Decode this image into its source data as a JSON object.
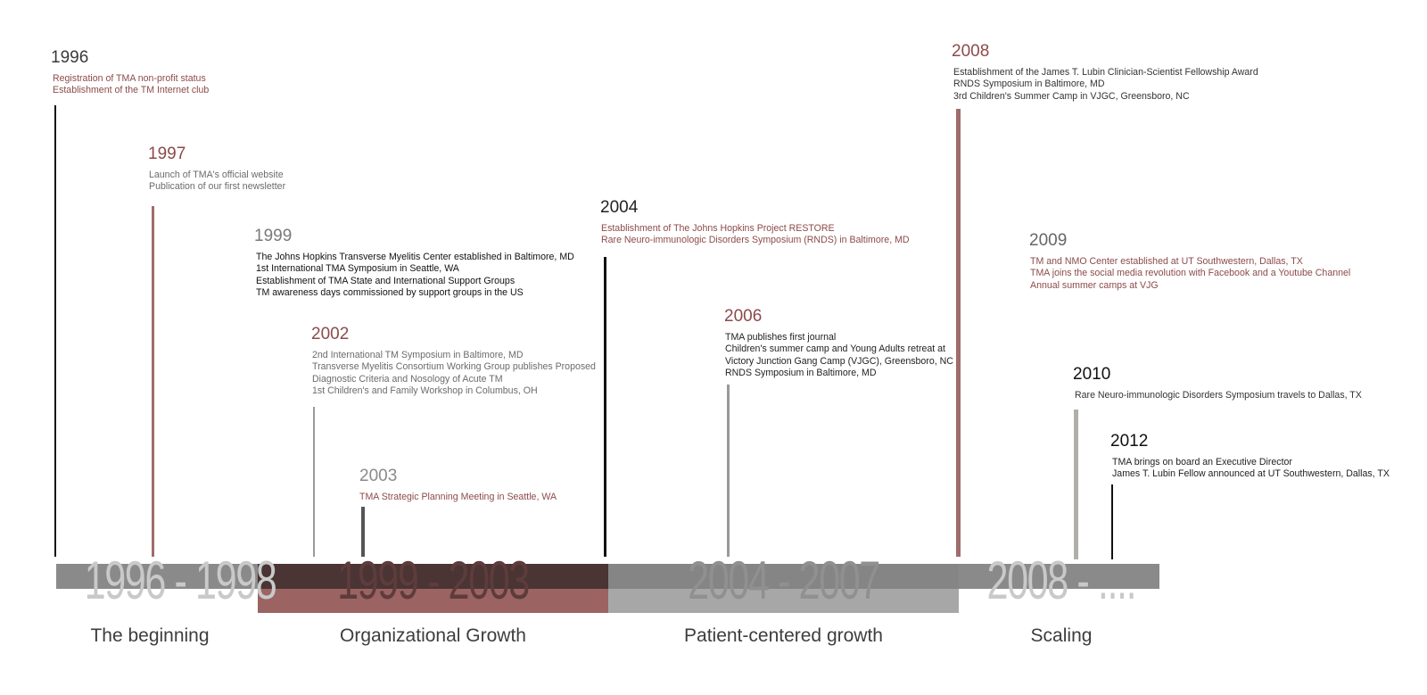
{
  "events": [
    {
      "year": "1996",
      "items": [
        "Registration of TMA non-profit status",
        "Establishment of the TM Internet club"
      ]
    },
    {
      "year": "1997",
      "items": [
        "Launch of TMA's official website",
        "Publication of our first newsletter"
      ]
    },
    {
      "year": "1999",
      "items": [
        "The Johns Hopkins Transverse Myelitis Center established in Baltimore, MD",
        "1st International TMA Symposium in Seattle, WA",
        "Establishment of TMA State and International Support Groups",
        "TM awareness days commissioned by support groups in the US"
      ]
    },
    {
      "year": "2002",
      "items": [
        "2nd International TM Symposium in Baltimore, MD",
        "Transverse Myelitis Consortium Working Group publishes Proposed",
        "Diagnostic Criteria and Nosology of Acute TM",
        "1st Children's and Family Workshop in Columbus, OH"
      ]
    },
    {
      "year": "2003",
      "items": [
        "TMA Strategic Planning Meeting in Seattle, WA"
      ]
    },
    {
      "year": "2004",
      "items": [
        "Establishment of The Johns Hopkins Project RESTORE",
        "Rare Neuro-immunologic Disorders Symposium (RNDS) in Baltimore, MD"
      ]
    },
    {
      "year": "2006",
      "items": [
        "TMA publishes first journal",
        "Children's summer camp and Young Adults retreat at",
        "Victory Junction Gang Camp (VJGC), Greensboro, NC",
        "RNDS Symposium in Baltimore, MD"
      ]
    },
    {
      "year": "2008",
      "items": [
        "Establishment of the James T. Lubin Clinician-Scientist Fellowship Award",
        "RNDS Symposium in Baltimore, MD",
        "3rd Children's Summer Camp in VJGC, Greensboro, NC"
      ]
    },
    {
      "year": "2009",
      "items": [
        "TM and NMO Center established at UT Southwestern, Dallas, TX",
        "TMA joins the social media revolution with Facebook and a Youtube Channel",
        "Annual summer camps at VJG"
      ]
    },
    {
      "year": "2010",
      "items": [
        "Rare Neuro-immunologic Disorders Symposium travels to Dallas, TX"
      ]
    },
    {
      "year": "2012",
      "items": [
        "TMA brings on board an Executive Director",
        "James T. Lubin Fellow announced at UT Southwestern, Dallas, TX"
      ]
    }
  ],
  "periods": [
    {
      "range": "1996 - 1998",
      "label": "The beginning"
    },
    {
      "range": "1999 - 2003",
      "label": "Organizational Growth"
    },
    {
      "range": "2004 - 2007",
      "label": "Patient-centered growth"
    },
    {
      "range": "2008 - ....",
      "label": "Scaling"
    }
  ]
}
